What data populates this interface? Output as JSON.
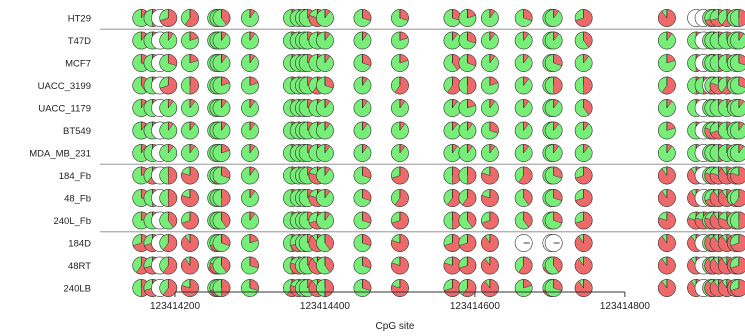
{
  "chart_data": {
    "type": "pie-matrix",
    "title": "",
    "xlabel": "CpG site",
    "x_ticks": [
      123414200,
      123414400,
      123414600,
      123414800
    ],
    "x_tick_labels": [
      "123414200",
      "123414400",
      "123414600",
      "123414800"
    ],
    "xlim": [
      123414052,
      123414993
    ],
    "colors": {
      "methylated": "#ee6a6a",
      "unmethylated": "#77ee77",
      "brown": "#b5883a",
      "empty": "#ffffff",
      "border": "#333333"
    },
    "samples": [
      "HT29",
      "T47D",
      "MCF7",
      "UACC_3199",
      "UACC_1179",
      "BT549",
      "MDA_MB_231",
      "184_Fb",
      "48_Fb",
      "240L_Fb",
      "184D",
      "48RT",
      "240LB"
    ],
    "group_breaks_after": [
      "HT29",
      "MDA_MB_231",
      "240L_Fb"
    ],
    "sites": [
      123414075,
      123414084,
      123414155,
      123414170,
      123414180,
      123414191,
      123414220,
      123414255,
      123414258,
      123414262,
      123414300,
      123414356,
      123414365,
      123414372,
      123414377,
      123414390,
      123414400,
      123414450,
      123414500,
      123414570,
      123414590,
      123414620,
      123414665,
      123414702,
      123414705,
      123414745,
      123414856,
      123414895,
      123414905,
      123414915,
      123414918,
      123414925,
      123414936,
      123414948,
      123414952,
      123414962,
      123414971
    ],
    "rows": [
      {
        "sample": "HT29",
        "methylated_fraction": [
          0.4,
          0.2,
          0.1,
          0.5,
          null,
          0.7,
          0.6,
          0.3,
          0.1,
          0.4,
          0.1,
          0.1,
          0.1,
          0.1,
          0.3,
          0.8,
          0.1,
          0.3,
          0.3,
          0.3,
          0.2,
          0.1,
          0.3,
          0.2,
          0.1,
          0.7,
          0.9,
          null,
          null,
          0.2,
          0.7,
          0.7,
          0.6,
          0.2,
          0.5,
          0.4,
          0.8
        ]
      },
      {
        "sample": "T47D",
        "methylated_fraction": [
          0.1,
          0.1,
          0.1,
          0.1,
          null,
          0.1,
          0.2,
          0.1,
          0.1,
          0.1,
          0.1,
          0.1,
          0.1,
          0.1,
          0.1,
          0.1,
          0.1,
          0.1,
          0.2,
          0.1,
          0.3,
          0.1,
          0.1,
          0.1,
          0.1,
          0.4,
          0.1,
          0.1,
          null,
          0.1,
          0.1,
          0.2,
          0.1,
          0.1,
          0.1,
          0.1,
          0.1
        ]
      },
      {
        "sample": "MCF7",
        "methylated_fraction": [
          0.1,
          0.1,
          0.3,
          0.1,
          null,
          0.3,
          0.2,
          0.1,
          0.2,
          0.1,
          0.1,
          0.3,
          0.1,
          0.1,
          0.1,
          0.1,
          0.1,
          0.3,
          0.2,
          0.4,
          0.3,
          0.1,
          0.1,
          0.2,
          0.3,
          0.1,
          0.2,
          0.5,
          null,
          0.2,
          0.1,
          0.5,
          0.2,
          0.1,
          0.3,
          0.1,
          0.1
        ]
      },
      {
        "sample": "UACC_3199",
        "methylated_fraction": [
          0.5,
          0.3,
          0.4,
          0.2,
          null,
          0.7,
          0.5,
          0.1,
          0.1,
          0.2,
          0.2,
          0.3,
          0.1,
          0.1,
          0.2,
          0.6,
          0.3,
          0.1,
          0.6,
          0.6,
          0.5,
          0.2,
          0.1,
          0.4,
          0.5,
          0.5,
          0.6,
          0.5,
          0.5,
          null,
          0.6,
          0.8,
          0.6,
          0.2,
          0.3,
          0.3,
          0.1
        ]
      },
      {
        "sample": "UACC_1179",
        "methylated_fraction": [
          0.1,
          0.1,
          0.1,
          0.1,
          null,
          0.1,
          0.1,
          0.2,
          0.1,
          0.1,
          0.1,
          0.1,
          0.1,
          0.1,
          0.1,
          0.1,
          0.1,
          0.1,
          0.1,
          0.1,
          0.2,
          0.1,
          0.1,
          0.1,
          0.1,
          0.4,
          0.1,
          0.1,
          null,
          0.1,
          0.1,
          0.1,
          0.1,
          0.1,
          0.1,
          0.1,
          0.1
        ]
      },
      {
        "sample": "BT549",
        "methylated_fraction": [
          0.1,
          0.1,
          0.1,
          0.1,
          null,
          0.1,
          0.1,
          0.2,
          0.1,
          0.1,
          0.1,
          0.1,
          0.1,
          0.1,
          0.1,
          0.4,
          0.1,
          0.1,
          0.1,
          0.1,
          0.1,
          0.3,
          0.1,
          0.2,
          0.1,
          0.1,
          0.2,
          0.1,
          null,
          0.3,
          0.8,
          0.7,
          0.4,
          0.2,
          0.1,
          0.1,
          0.1
        ]
      },
      {
        "sample": "MDA_MB_231",
        "methylated_fraction": [
          0.1,
          0.1,
          0.1,
          0.1,
          null,
          0.1,
          0.1,
          0.1,
          0.1,
          0.2,
          0.1,
          0.1,
          0.1,
          0.1,
          0.1,
          0.1,
          0.1,
          0.1,
          0.1,
          0.1,
          0.1,
          0.1,
          0.1,
          0.1,
          0.1,
          0.1,
          0.1,
          0.1,
          null,
          0.1,
          0.3,
          0.5,
          0.3,
          0.1,
          0.1,
          0.1,
          0.1
        ]
      },
      {
        "sample": "184_Fb",
        "methylated_fraction": [
          0.7,
          0.5,
          0.2,
          0.6,
          null,
          0.5,
          0.8,
          0.2,
          0.6,
          0.3,
          0.1,
          0.3,
          0.4,
          0.1,
          0.1,
          0.8,
          0.1,
          0.3,
          0.7,
          0.5,
          0.5,
          0.8,
          0.6,
          0.2,
          0.3,
          0.7,
          0.9,
          0.9,
          null,
          0.4,
          0.8,
          0.8,
          0.9,
          0.8,
          0.8,
          0.4,
          0.8
        ]
      },
      {
        "sample": "48_Fb",
        "methylated_fraction": [
          0.7,
          0.5,
          0.3,
          0.5,
          null,
          0.5,
          0.8,
          0.4,
          0.4,
          0.5,
          0.1,
          0.3,
          0.4,
          0.2,
          0.1,
          0.8,
          0.1,
          0.3,
          0.6,
          0.6,
          0.6,
          0.8,
          0.4,
          0.4,
          0.3,
          0.7,
          0.9,
          0.9,
          null,
          0.4,
          0.7,
          0.9,
          0.9,
          0.6,
          0.6,
          0.4,
          0.8
        ]
      },
      {
        "sample": "240L_Fb",
        "methylated_fraction": [
          0.7,
          0.3,
          0.2,
          0.4,
          null,
          0.4,
          0.7,
          0.3,
          0.5,
          0.4,
          0.1,
          0.2,
          0.4,
          0.2,
          0.1,
          0.7,
          0.1,
          0.3,
          0.7,
          0.5,
          0.4,
          0.7,
          0.4,
          0.3,
          0.3,
          0.7,
          0.8,
          0.8,
          0.8,
          0.5,
          0.8,
          0.9,
          0.8,
          0.6,
          0.5,
          0.4,
          0.8
        ]
      },
      {
        "sample": "184D",
        "methylated_fraction": [
          0.8,
          0.6,
          0.7,
          0.7,
          null,
          0.6,
          0.9,
          0.6,
          0.7,
          0.3,
          0.2,
          0.5,
          0.7,
          0.5,
          0.1,
          0.9,
          0.4,
          0.3,
          0.8,
          0.7,
          0.7,
          0.9,
          null,
          null,
          null,
          0.9,
          0.9,
          0.9,
          null,
          0.5,
          0.9,
          0.9,
          0.9,
          0.9,
          0.7,
          0.7,
          0.9
        ]
      },
      {
        "sample": "48RT",
        "methylated_fraction": [
          0.8,
          0.7,
          0.6,
          0.7,
          null,
          0.6,
          0.9,
          0.7,
          0.8,
          0.4,
          0.3,
          0.5,
          0.8,
          0.5,
          0.1,
          0.9,
          0.4,
          0.3,
          0.8,
          0.8,
          0.7,
          0.9,
          0.6,
          0.7,
          0.4,
          0.9,
          0.9,
          0.9,
          null,
          0.4,
          0.9,
          0.9,
          0.9,
          0.9,
          0.7,
          0.6,
          0.9
        ]
      },
      {
        "sample": "240LB",
        "methylated_fraction": [
          0.8,
          0.6,
          0.5,
          0.7,
          null,
          0.6,
          0.8,
          0.6,
          0.7,
          0.5,
          0.3,
          0.6,
          0.8,
          0.5,
          0.1,
          0.9,
          0.5,
          0.3,
          0.8,
          0.7,
          0.6,
          0.9,
          0.2,
          0.7,
          0.3,
          0.9,
          0.9,
          0.9,
          null,
          0.5,
          0.9,
          0.9,
          0.9,
          0.9,
          0.7,
          0.6,
          0.9
        ]
      }
    ]
  }
}
